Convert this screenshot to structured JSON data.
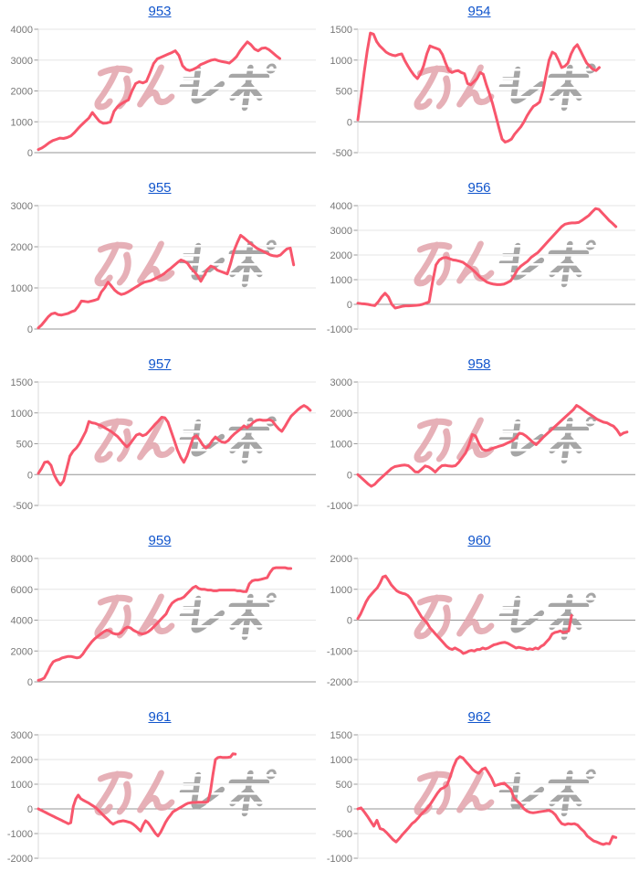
{
  "page": {
    "background": "#ffffff"
  },
  "style": {
    "line_color": "#f8566c",
    "link_color": "#1155cc",
    "grid_color": "#e6e6e6",
    "zero_line_color": "#949494",
    "axis_label_color": "#777777",
    "axis_line_color": "#d9d9d9",
    "tick_color": "#999999",
    "watermark_pink": "#e2a3ab",
    "watermark_gray": "#a6a6a6"
  },
  "watermark": {
    "text": "みんレポ",
    "part_pink": "みん",
    "part_gray": "レポ"
  },
  "chart_data": [
    {
      "type": "line",
      "title": "953",
      "xlabel": "",
      "ylabel": "",
      "ylim": [
        0,
        4000
      ],
      "yticks": [
        4000,
        3000,
        2000,
        1000,
        0
      ],
      "span": 0.87,
      "grid": true,
      "legend": false,
      "values": [
        100,
        150,
        230,
        320,
        390,
        430,
        470,
        460,
        490,
        540,
        650,
        780,
        900,
        1010,
        1120,
        1300,
        1150,
        1010,
        950,
        960,
        1000,
        1340,
        1490,
        1580,
        1650,
        1710,
        2000,
        2240,
        2300,
        2260,
        2310,
        2590,
        2890,
        3040,
        3090,
        3140,
        3190,
        3240,
        3300,
        3150,
        2820,
        2700,
        2660,
        2700,
        2760,
        2850,
        2900,
        2950,
        3000,
        3020,
        2980,
        2950,
        2930,
        2900,
        3000,
        3110,
        3300,
        3450,
        3590,
        3500,
        3360,
        3300,
        3380,
        3400,
        3340,
        3240,
        3140,
        3050
      ]
    },
    {
      "type": "line",
      "title": "954",
      "xlabel": "",
      "ylabel": "",
      "ylim": [
        -500,
        1500
      ],
      "yticks": [
        1500,
        1000,
        500,
        0,
        -500
      ],
      "span": 0.87,
      "grid": true,
      "legend": false,
      "values": [
        30,
        400,
        800,
        1150,
        1440,
        1420,
        1300,
        1230,
        1180,
        1130,
        1100,
        1080,
        1070,
        1090,
        1100,
        990,
        900,
        820,
        750,
        700,
        780,
        910,
        1100,
        1230,
        1210,
        1190,
        1170,
        1090,
        950,
        830,
        800,
        820,
        830,
        800,
        780,
        620,
        600,
        650,
        700,
        800,
        770,
        600,
        450,
        290,
        100,
        -100,
        -280,
        -330,
        -310,
        -280,
        -200,
        -140,
        -80,
        0,
        100,
        180,
        250,
        280,
        320,
        500,
        750,
        1000,
        1130,
        1100,
        1000,
        880,
        900,
        950,
        1100,
        1200,
        1250,
        1150,
        1050,
        950,
        900,
        850,
        830,
        880
      ]
    },
    {
      "type": "line",
      "title": "955",
      "xlabel": "",
      "ylabel": "",
      "ylim": [
        0,
        3000
      ],
      "yticks": [
        3000,
        2000,
        1000,
        0
      ],
      "span": 0.92,
      "grid": true,
      "legend": false,
      "values": [
        30,
        100,
        200,
        300,
        370,
        390,
        350,
        340,
        360,
        380,
        420,
        450,
        550,
        680,
        670,
        660,
        680,
        700,
        730,
        900,
        1000,
        1140,
        1050,
        950,
        880,
        840,
        860,
        900,
        950,
        1000,
        1050,
        1100,
        1140,
        1160,
        1180,
        1220,
        1260,
        1300,
        1350,
        1420,
        1480,
        1550,
        1620,
        1680,
        1650,
        1600,
        1480,
        1400,
        1300,
        1160,
        1300,
        1450,
        1530,
        1500,
        1430,
        1400,
        1370,
        1340,
        1600,
        1900,
        2100,
        2280,
        2220,
        2150,
        2080,
        2020,
        1960,
        1920,
        1880,
        1840,
        1800,
        1780,
        1770,
        1800,
        1880,
        1950,
        1970,
        1560
      ]
    },
    {
      "type": "line",
      "title": "956",
      "xlabel": "",
      "ylabel": "",
      "ylim": [
        -1000,
        4000
      ],
      "yticks": [
        4000,
        3000,
        2000,
        1000,
        0,
        -1000
      ],
      "span": 0.93,
      "grid": true,
      "legend": false,
      "values": [
        50,
        30,
        20,
        0,
        -30,
        -50,
        100,
        300,
        450,
        300,
        0,
        -150,
        -120,
        -80,
        -60,
        -60,
        -50,
        -40,
        -30,
        0,
        50,
        100,
        900,
        1600,
        1800,
        1880,
        1900,
        1850,
        1800,
        1780,
        1750,
        1700,
        1600,
        1500,
        1380,
        1250,
        1100,
        1000,
        900,
        850,
        820,
        800,
        800,
        820,
        880,
        950,
        1150,
        1400,
        1550,
        1650,
        1750,
        1900,
        2000,
        2100,
        2250,
        2400,
        2550,
        2700,
        2850,
        3000,
        3150,
        3250,
        3280,
        3300,
        3300,
        3320,
        3400,
        3500,
        3600,
        3750,
        3880,
        3850,
        3700,
        3550,
        3400,
        3280,
        3150
      ]
    },
    {
      "type": "line",
      "title": "957",
      "xlabel": "",
      "ylabel": "",
      "ylim": [
        -500,
        1500
      ],
      "yticks": [
        1500,
        1000,
        500,
        0,
        -500
      ],
      "span": 0.98,
      "grid": true,
      "legend": false,
      "values": [
        20,
        100,
        200,
        210,
        150,
        0,
        -100,
        -170,
        -100,
        100,
        300,
        380,
        430,
        500,
        600,
        700,
        860,
        840,
        830,
        810,
        790,
        760,
        730,
        700,
        660,
        620,
        560,
        500,
        450,
        500,
        570,
        640,
        660,
        630,
        650,
        700,
        760,
        820,
        870,
        930,
        920,
        850,
        700,
        550,
        400,
        280,
        200,
        300,
        450,
        600,
        630,
        560,
        480,
        430,
        470,
        550,
        610,
        560,
        530,
        520,
        550,
        610,
        660,
        700,
        740,
        790,
        760,
        800,
        850,
        880,
        890,
        880,
        880,
        890,
        870,
        800,
        740,
        700,
        780,
        870,
        950,
        1000,
        1050,
        1090,
        1120,
        1090,
        1040
      ]
    },
    {
      "type": "line",
      "title": "958",
      "xlabel": "",
      "ylabel": "",
      "ylim": [
        -1000,
        3000
      ],
      "yticks": [
        3000,
        2000,
        1000,
        0,
        -1000
      ],
      "span": 0.97,
      "grid": true,
      "legend": false,
      "values": [
        0,
        -100,
        -200,
        -300,
        -380,
        -320,
        -200,
        -100,
        0,
        100,
        200,
        260,
        280,
        300,
        310,
        290,
        200,
        90,
        80,
        180,
        280,
        250,
        180,
        80,
        200,
        290,
        300,
        280,
        270,
        290,
        400,
        550,
        700,
        950,
        1300,
        1250,
        1000,
        820,
        780,
        800,
        850,
        880,
        920,
        950,
        1000,
        1050,
        1100,
        1200,
        1340,
        1320,
        1250,
        1150,
        1050,
        970,
        1080,
        1200,
        1300,
        1400,
        1500,
        1600,
        1700,
        1800,
        1900,
        2000,
        2100,
        2240,
        2180,
        2100,
        2020,
        1950,
        1880,
        1800,
        1750,
        1700,
        1680,
        1620,
        1570,
        1450,
        1280,
        1350,
        1380
      ]
    },
    {
      "type": "line",
      "title": "959",
      "xlabel": "",
      "ylabel": "",
      "ylim": [
        0,
        8000
      ],
      "yticks": [
        8000,
        6000,
        4000,
        2000,
        0
      ],
      "span": 0.91,
      "grid": true,
      "legend": false,
      "values": [
        100,
        150,
        250,
        600,
        1000,
        1300,
        1400,
        1450,
        1550,
        1600,
        1650,
        1650,
        1600,
        1550,
        1600,
        1800,
        2100,
        2350,
        2600,
        2800,
        2950,
        3100,
        3250,
        3350,
        3300,
        3150,
        3100,
        3100,
        3200,
        3450,
        3550,
        3500,
        3350,
        3250,
        3150,
        3100,
        3150,
        3250,
        3400,
        3600,
        3800,
        4000,
        4200,
        4400,
        4800,
        5100,
        5250,
        5350,
        5400,
        5500,
        5700,
        5900,
        6100,
        6200,
        6050,
        6000,
        6000,
        5950,
        5950,
        5900,
        5900,
        5950,
        5950,
        5950,
        5950,
        5950,
        5950,
        5900,
        5900,
        5850,
        5850,
        6350,
        6550,
        6600,
        6600,
        6650,
        6700,
        6750,
        7100,
        7350,
        7400,
        7400,
        7400,
        7400,
        7350,
        7350
      ]
    },
    {
      "type": "line",
      "title": "960",
      "xlabel": "",
      "ylabel": "",
      "ylim": [
        -2000,
        2000
      ],
      "yticks": [
        2000,
        1000,
        0,
        -1000,
        -2000
      ],
      "span": 0.77,
      "grid": true,
      "legend": false,
      "values": [
        50,
        200,
        400,
        600,
        750,
        850,
        950,
        1050,
        1200,
        1400,
        1430,
        1300,
        1150,
        1050,
        950,
        900,
        870,
        850,
        800,
        700,
        550,
        400,
        250,
        100,
        0,
        -100,
        -250,
        -350,
        -450,
        -550,
        -650,
        -750,
        -850,
        -920,
        -950,
        -900,
        -950,
        -1000,
        -1080,
        -1050,
        -1000,
        -980,
        -1000,
        -950,
        -950,
        -900,
        -930,
        -900,
        -850,
        -800,
        -780,
        -750,
        -730,
        -720,
        -750,
        -800,
        -850,
        -900,
        -880,
        -900,
        -920,
        -950,
        -930,
        -950,
        -900,
        -930,
        -850,
        -800,
        -700,
        -600,
        -450,
        -400,
        -380,
        -350,
        -400,
        -380,
        -350,
        150
      ]
    },
    {
      "type": "line",
      "title": "961",
      "xlabel": "",
      "ylabel": "",
      "ylim": [
        -2000,
        3000
      ],
      "yticks": [
        3000,
        2000,
        1000,
        0,
        -1000,
        -2000
      ],
      "span": 0.71,
      "grid": true,
      "legend": false,
      "values": [
        0,
        -50,
        -100,
        -150,
        -200,
        -250,
        -300,
        -350,
        -400,
        -450,
        -500,
        -550,
        -600,
        -560,
        100,
        400,
        560,
        420,
        350,
        300,
        250,
        180,
        120,
        50,
        -50,
        -150,
        -250,
        -350,
        -450,
        -550,
        -620,
        -560,
        -520,
        -500,
        -480,
        -500,
        -530,
        -560,
        -620,
        -700,
        -800,
        -900,
        -650,
        -480,
        -560,
        -700,
        -850,
        -1000,
        -1100,
        -950,
        -750,
        -550,
        -380,
        -250,
        -120,
        -60,
        0,
        60,
        120,
        180,
        230,
        250,
        260,
        260,
        270,
        270,
        270,
        265,
        300,
        700,
        1400,
        2000,
        2080,
        2100,
        2080,
        2080,
        2090,
        2100,
        2230,
        2220
      ]
    },
    {
      "type": "line",
      "title": "962",
      "xlabel": "",
      "ylabel": "",
      "ylim": [
        -1000,
        1500
      ],
      "yticks": [
        1500,
        1000,
        500,
        0,
        -500,
        -1000
      ],
      "span": 0.93,
      "grid": true,
      "legend": false,
      "values": [
        0,
        20,
        -60,
        -150,
        -250,
        -350,
        -230,
        -400,
        -420,
        -480,
        -550,
        -620,
        -670,
        -600,
        -520,
        -450,
        -380,
        -300,
        -250,
        -180,
        -100,
        -40,
        30,
        120,
        220,
        320,
        400,
        430,
        480,
        650,
        850,
        1000,
        1060,
        1030,
        950,
        880,
        800,
        750,
        720,
        800,
        830,
        730,
        620,
        470,
        490,
        510,
        520,
        460,
        400,
        230,
        160,
        100,
        10,
        -40,
        -70,
        -80,
        -70,
        -60,
        -50,
        -40,
        -30,
        -60,
        -120,
        -220,
        -300,
        -320,
        -300,
        -310,
        -300,
        -330,
        -400,
        -460,
        -550,
        -600,
        -650,
        -670,
        -700,
        -720,
        -700,
        -710,
        -560,
        -580
      ]
    }
  ]
}
